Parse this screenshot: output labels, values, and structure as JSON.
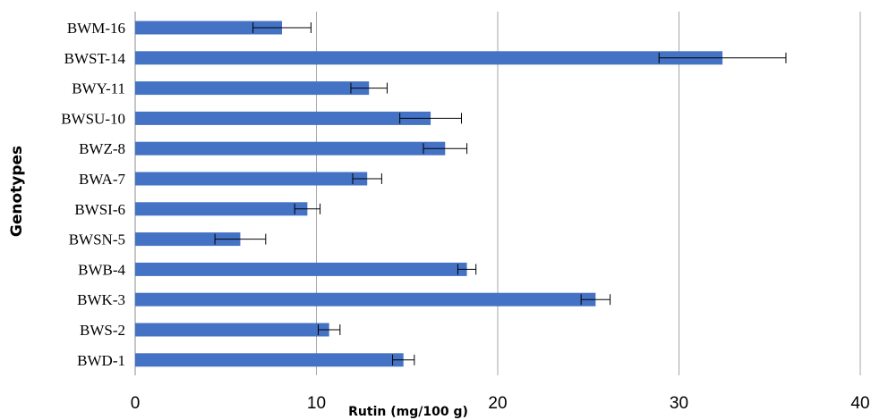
{
  "chart_data": {
    "type": "bar",
    "orientation": "horizontal",
    "title": "",
    "xlabel": "Rutin (mg/100 g)",
    "ylabel": "Genotypes",
    "xlim": [
      0,
      40
    ],
    "xticks": [
      "0",
      "10",
      "20",
      "30",
      "40"
    ],
    "grid": "vertical",
    "legend": "none",
    "bar_color": "#4472C4",
    "categories": [
      "BWM-16",
      "BWST-14",
      "BWY-11",
      "BWSU-10",
      "BWZ-8",
      "BWA-7",
      "BWSI-6",
      "BWSN-5",
      "BWB-4",
      "BWK-3",
      "BWS-2",
      "BWD-1"
    ],
    "values": [
      8.1,
      32.4,
      12.9,
      16.3,
      17.1,
      12.8,
      9.5,
      5.8,
      18.3,
      25.4,
      10.7,
      14.8
    ],
    "errors": [
      1.6,
      3.5,
      1.0,
      1.7,
      1.2,
      0.8,
      0.7,
      1.4,
      0.5,
      0.8,
      0.6,
      0.6
    ]
  }
}
